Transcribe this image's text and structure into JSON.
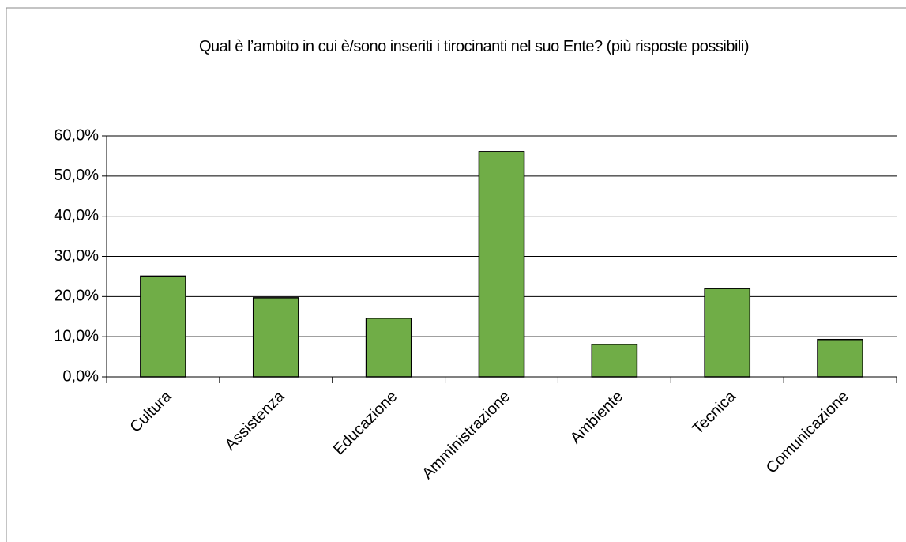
{
  "chart_data": {
    "type": "bar",
    "title": "Qual è l’ambito in cui è/sono inseriti i tirocinanti nel suo Ente? (più risposte possibili)",
    "categories": [
      "Cultura",
      "Assistenza",
      "Educazione",
      "Amministrazione",
      "Ambiente",
      "Tecnica",
      "Comunicazione"
    ],
    "values": [
      25.1,
      19.7,
      14.6,
      56.1,
      8.1,
      22.0,
      9.3
    ],
    "color": "#70ad47",
    "ylim": [
      0,
      60
    ],
    "yticks": [
      {
        "value": 0,
        "label": "0,0%"
      },
      {
        "value": 10,
        "label": "10,0%"
      },
      {
        "value": 20,
        "label": "20,0%"
      },
      {
        "value": 30,
        "label": "30,0%"
      },
      {
        "value": 40,
        "label": "40,0%"
      },
      {
        "value": 50,
        "label": "50,0%"
      },
      {
        "value": 60,
        "label": "60,0%"
      }
    ],
    "grid": true
  }
}
